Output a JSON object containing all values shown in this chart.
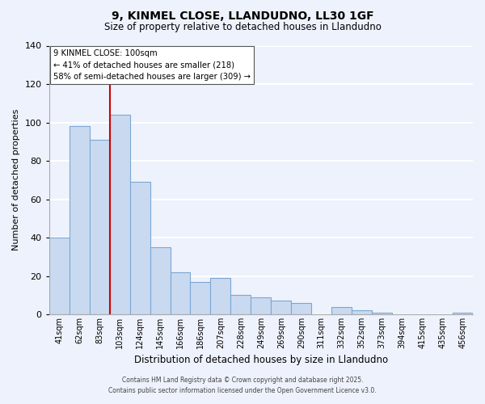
{
  "title1": "9, KINMEL CLOSE, LLANDUDNO, LL30 1GF",
  "title2": "Size of property relative to detached houses in Llandudno",
  "xlabel": "Distribution of detached houses by size in Llandudno",
  "ylabel": "Number of detached properties",
  "bar_color": "#c9daf0",
  "bar_edge_color": "#7ba7d4",
  "categories": [
    "41sqm",
    "62sqm",
    "83sqm",
    "103sqm",
    "124sqm",
    "145sqm",
    "166sqm",
    "186sqm",
    "207sqm",
    "228sqm",
    "249sqm",
    "269sqm",
    "290sqm",
    "311sqm",
    "332sqm",
    "352sqm",
    "373sqm",
    "394sqm",
    "415sqm",
    "435sqm",
    "456sqm"
  ],
  "values": [
    40,
    98,
    91,
    104,
    69,
    35,
    22,
    17,
    19,
    10,
    9,
    7,
    6,
    0,
    4,
    2,
    1,
    0,
    0,
    0,
    1
  ],
  "ylim": [
    0,
    140
  ],
  "yticks": [
    0,
    20,
    40,
    60,
    80,
    100,
    120,
    140
  ],
  "vline_index": 3,
  "vline_color": "#cc0000",
  "annotation_title": "9 KINMEL CLOSE: 100sqm",
  "annotation_line1": "← 41% of detached houses are smaller (218)",
  "annotation_line2": "58% of semi-detached houses are larger (309) →",
  "annotation_box_color": "#ffffff",
  "annotation_box_edge": "#555555",
  "footer1": "Contains HM Land Registry data © Crown copyright and database right 2025.",
  "footer2": "Contains public sector information licensed under the Open Government Licence v3.0.",
  "background_color": "#eef2fc",
  "grid_color": "#ffffff"
}
